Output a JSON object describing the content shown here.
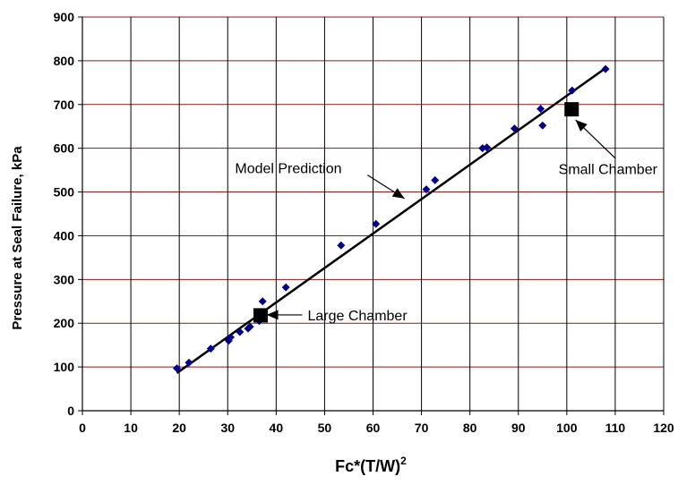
{
  "chart_data": {
    "type": "scatter",
    "ylabel": "Pressure at Seal Failure, kPa",
    "xlabel": {
      "base": "Fc*(T/W)",
      "superscript": "2"
    },
    "xlim": [
      0,
      120
    ],
    "ylim": [
      0,
      900
    ],
    "x_ticks": [
      0,
      10,
      20,
      30,
      40,
      50,
      60,
      70,
      80,
      90,
      100,
      110,
      120
    ],
    "y_ticks": [
      0,
      100,
      200,
      300,
      400,
      500,
      600,
      700,
      800,
      900
    ],
    "grid": {
      "horizontal": true,
      "vertical": true
    },
    "points": [
      [
        19.5,
        97
      ],
      [
        22,
        110
      ],
      [
        26.5,
        142
      ],
      [
        30.2,
        160
      ],
      [
        30.6,
        168
      ],
      [
        32.5,
        180
      ],
      [
        34.2,
        188
      ],
      [
        34.6,
        192
      ],
      [
        36.5,
        205
      ],
      [
        37.2,
        250
      ],
      [
        42,
        282
      ],
      [
        53.4,
        378
      ],
      [
        60.6,
        427
      ],
      [
        71,
        506
      ],
      [
        72.8,
        527
      ],
      [
        82.6,
        600
      ],
      [
        83.5,
        602
      ],
      [
        89.2,
        645
      ],
      [
        94.6,
        690
      ],
      [
        95,
        652
      ],
      [
        101.1,
        732
      ],
      [
        108,
        781
      ]
    ],
    "model_line": [
      [
        19.5,
        86
      ],
      [
        108,
        783
      ]
    ],
    "large_marker": [
      36.8,
      218
    ],
    "small_marker": [
      101,
      689
    ],
    "annotations": [
      {
        "text": "Model Prediction",
        "at": [
          31.5,
          555
        ],
        "target": [
          66.5,
          485
        ],
        "anchor": "start"
      },
      {
        "text": "Large Chamber",
        "at": [
          46.5,
          219
        ],
        "target": [
          38,
          219
        ],
        "anchor": "start"
      },
      {
        "text": "Small Chamber",
        "at": [
          108.5,
          553
        ],
        "target": [
          101.8,
          665
        ],
        "anchor": "middle"
      }
    ],
    "colors": {
      "points": "#00008B",
      "line": "#000000",
      "h_grid": "#8B1A1A",
      "v_grid": "#000000",
      "markers": "#000000"
    }
  }
}
